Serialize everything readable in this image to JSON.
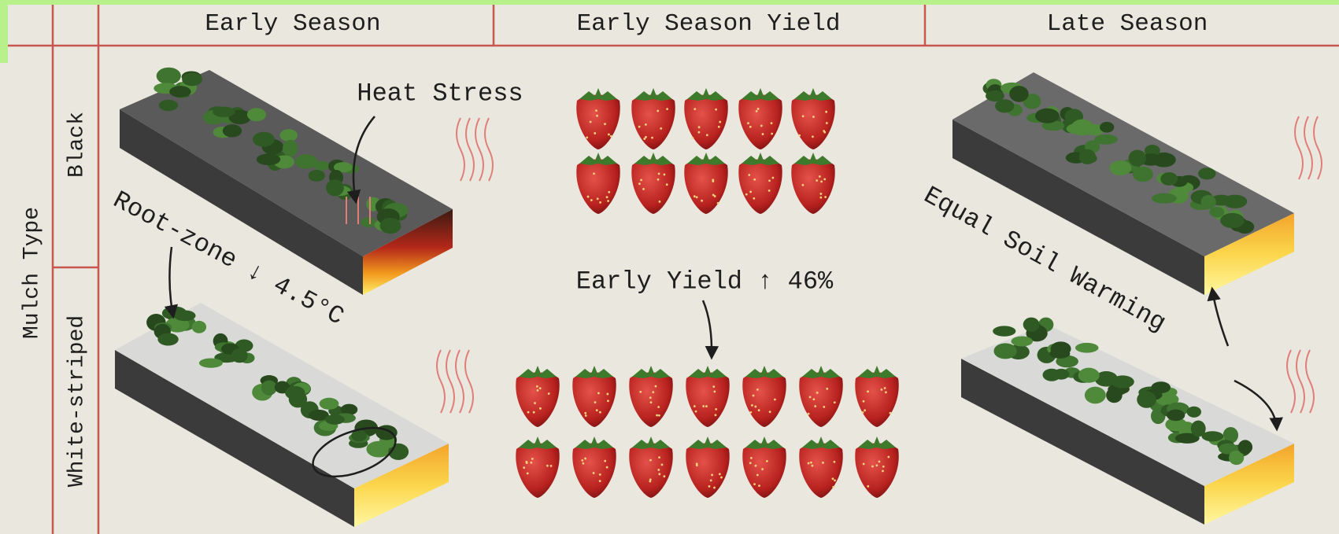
{
  "header": {
    "columns": [
      "Early Season",
      "Early Season Yield",
      "Late Season"
    ]
  },
  "rows": {
    "title": "Mulch Type",
    "labels": [
      "Black",
      "White-striped"
    ]
  },
  "annotations": {
    "heat_stress": "Heat Stress",
    "root_zone": "Root-zone ↓ 4.5°C",
    "early_yield": "Early Yield ↑ 46%",
    "soil_warming": "Equal Soil Warming"
  }
}
